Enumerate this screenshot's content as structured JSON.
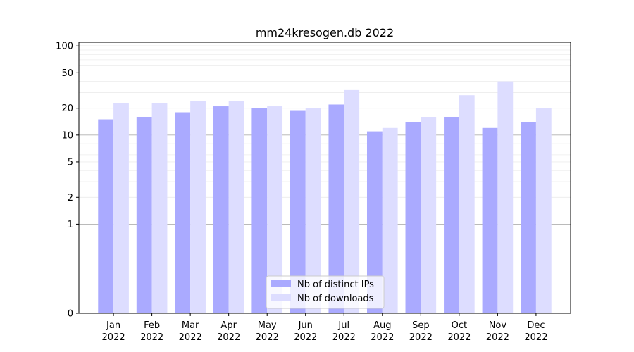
{
  "chart_data": {
    "type": "bar",
    "title": "mm24kresogen.db 2022",
    "xlabel": "",
    "ylabel": "",
    "scale": "symlog",
    "ylim": [
      0,
      110
    ],
    "yticks": [
      0,
      1,
      2,
      5,
      10,
      20,
      50,
      100
    ],
    "ytick_labels": [
      "0",
      "1",
      "2",
      "5",
      "10",
      "20",
      "50",
      "100"
    ],
    "categories": [
      [
        "Jan",
        "2022"
      ],
      [
        "Feb",
        "2022"
      ],
      [
        "Mar",
        "2022"
      ],
      [
        "Apr",
        "2022"
      ],
      [
        "May",
        "2022"
      ],
      [
        "Jun",
        "2022"
      ],
      [
        "Jul",
        "2022"
      ],
      [
        "Aug",
        "2022"
      ],
      [
        "Sep",
        "2022"
      ],
      [
        "Oct",
        "2022"
      ],
      [
        "Nov",
        "2022"
      ],
      [
        "Dec",
        "2022"
      ]
    ],
    "series": [
      {
        "name": "Nb of distinct IPs",
        "color": "#aaaaff",
        "values": [
          15,
          16,
          18,
          21,
          20,
          19,
          22,
          11,
          14,
          16,
          12,
          14
        ]
      },
      {
        "name": "Nb of downloads",
        "color": "#ddddff",
        "values": [
          23,
          23,
          24,
          24,
          21,
          20,
          32,
          12,
          16,
          28,
          40,
          20
        ]
      }
    ],
    "legend": "bottom-center",
    "grid": true,
    "colors": {
      "major_grid": "#b0b0b0",
      "minor_grid": "#ececec",
      "axes": "#000000"
    }
  }
}
